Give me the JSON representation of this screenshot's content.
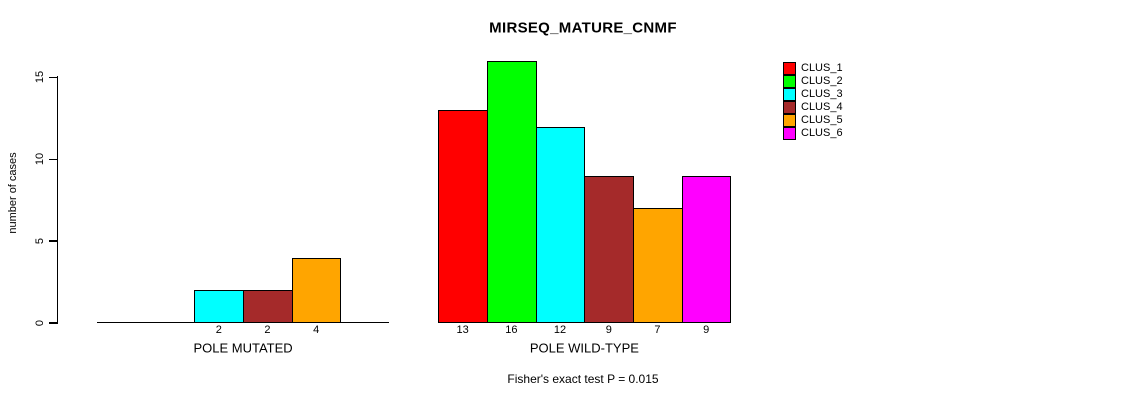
{
  "chart_data": {
    "type": "bar",
    "title": "MIRSEQ_MATURE_CNMF",
    "ylabel": "number of cases",
    "ylim": [
      0,
      16
    ],
    "yticks": [
      0,
      5,
      10,
      15
    ],
    "grid": false,
    "legend_position": "right",
    "clusters": [
      {
        "label": "CLUS_1",
        "color": "#FF0000"
      },
      {
        "label": "CLUS_2",
        "color": "#00FF00"
      },
      {
        "label": "CLUS_3",
        "color": "#00FFFF"
      },
      {
        "label": "CLUS_4",
        "color": "#A52A2A"
      },
      {
        "label": "CLUS_5",
        "color": "#FFA500"
      },
      {
        "label": "CLUS_6",
        "color": "#FF00FF"
      }
    ],
    "groups": [
      {
        "label": "POLE MUTATED",
        "values": [
          0,
          0,
          2,
          2,
          4,
          0
        ]
      },
      {
        "label": "POLE WILD-TYPE",
        "values": [
          13,
          16,
          12,
          9,
          7,
          9
        ]
      }
    ],
    "bar_value_labels": "shown under each non-zero bar",
    "annotation": "Fisher's exact test P = 0.015",
    "axis_color": "#000000",
    "background_color": "#FFFFFF"
  }
}
